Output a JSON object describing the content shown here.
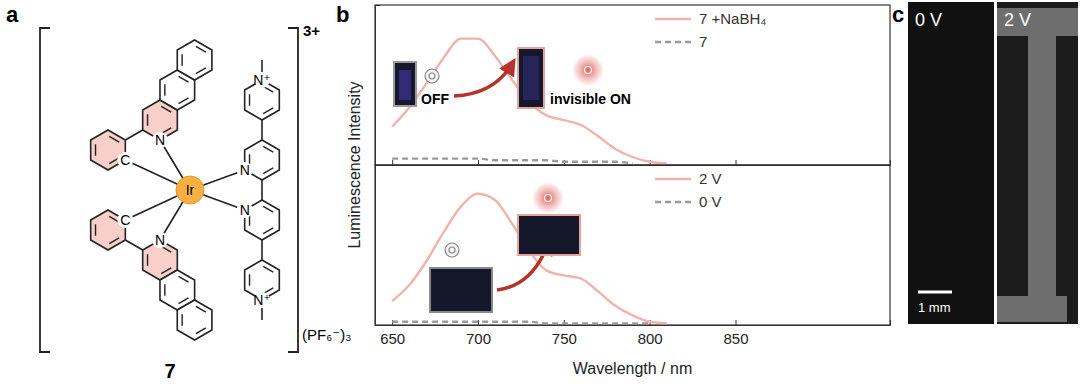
{
  "panel_labels": [
    "a",
    "b",
    "c"
  ],
  "structure": {
    "compound": "7",
    "charge": "3+",
    "counterion": "(PF₆⁻)₃",
    "metal": "Ir",
    "atoms": [
      "C",
      "N",
      "C",
      "N",
      "N",
      "N",
      "N⁺",
      "N⁺"
    ]
  },
  "chart_data": [
    {
      "type": "line",
      "y_label": "Luminescence Intensity",
      "x": [
        650,
        660,
        670,
        680,
        690,
        700,
        710,
        720,
        730,
        740,
        750,
        760,
        770,
        780,
        790,
        800,
        810
      ],
      "xlim": [
        640,
        940
      ],
      "ylim": [
        0,
        1
      ],
      "xticks": [
        650,
        700,
        750,
        800,
        850
      ],
      "yticks": [],
      "tick_labels": false,
      "legend": "upper right",
      "series": [
        {
          "name": "7 +NaBH₄",
          "color": "#f0b3ae",
          "line_style": "solid",
          "values": [
            0.24,
            0.36,
            0.51,
            0.67,
            0.79,
            0.79,
            0.68,
            0.53,
            0.39,
            0.31,
            0.28,
            0.25,
            0.18,
            0.1,
            0.05,
            0.02,
            0.01
          ]
        },
        {
          "name": "7",
          "color": "#9a9a9a",
          "line_style": "dashed",
          "values": [
            0.04,
            0.04,
            0.04,
            0.04,
            0.04,
            0.04,
            0.03,
            0.03,
            0.03,
            0.03,
            0.02,
            0.02,
            0.02,
            0.02,
            0.01,
            null,
            null
          ]
        }
      ]
    },
    {
      "type": "line",
      "x_label": "Wavelength / nm",
      "x": [
        650,
        660,
        670,
        680,
        690,
        700,
        710,
        720,
        730,
        740,
        750,
        760,
        770,
        780,
        790,
        800,
        810
      ],
      "xlim": [
        640,
        940
      ],
      "ylim": [
        0,
        1
      ],
      "xticks": [
        650,
        700,
        750,
        800,
        850
      ],
      "yticks": [],
      "tick_labels": "x",
      "legend": "upper right",
      "series": [
        {
          "name": "2 V",
          "color": "#f0b3ae",
          "line_style": "solid",
          "values": [
            0.15,
            0.25,
            0.4,
            0.58,
            0.74,
            0.82,
            0.78,
            0.63,
            0.46,
            0.34,
            0.31,
            0.29,
            0.21,
            0.12,
            0.06,
            0.02,
            0.01
          ]
        },
        {
          "name": "0 V",
          "color": "#9a9a9a",
          "line_style": "dashed",
          "values": [
            0.02,
            0.02,
            0.02,
            0.02,
            0.02,
            0.02,
            0.02,
            0.02,
            0.02,
            0.01,
            0.01,
            0.01,
            0.01,
            0.01,
            0.01,
            0.01,
            null
          ]
        }
      ]
    }
  ],
  "insets": {
    "top": [
      "OFF",
      "invisible ON"
    ]
  },
  "images": {
    "labels": [
      "0 V",
      "2 V"
    ],
    "scale_bar": "1 mm"
  }
}
